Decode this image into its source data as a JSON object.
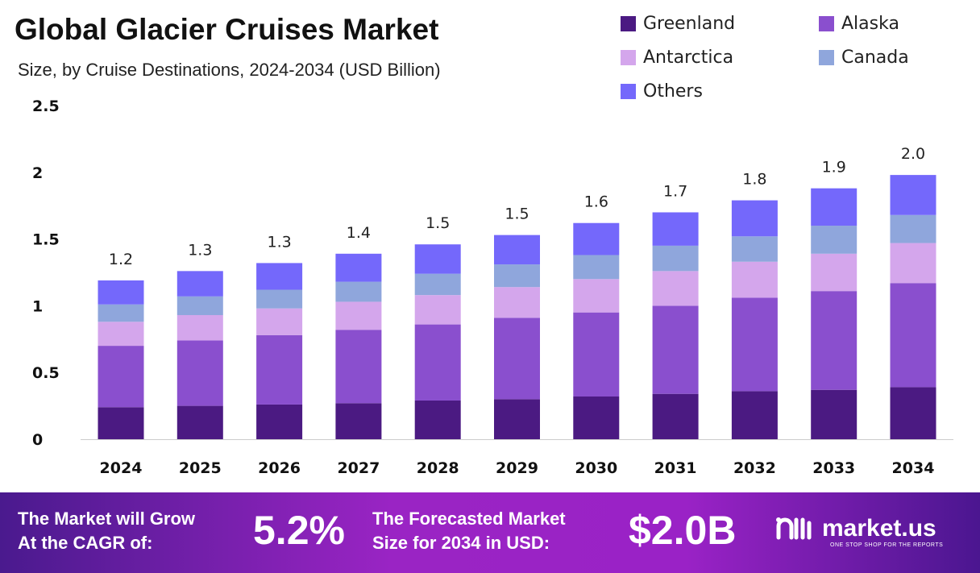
{
  "title": "Global Glacier Cruises Market",
  "subtitle": "Size, by Cruise Destinations, 2024-2034 (USD Billion)",
  "chart_data": {
    "type": "bar",
    "stacked": true,
    "title": "Global Glacier Cruises Market",
    "subtitle": "Size, by Cruise Destinations, 2024-2034 (USD Billion)",
    "categories": [
      "2024",
      "2025",
      "2026",
      "2027",
      "2028",
      "2029",
      "2030",
      "2031",
      "2032",
      "2033",
      "2034"
    ],
    "ylim": [
      0,
      2.5
    ],
    "yticks": [
      "0",
      "0.5",
      "1",
      "1.5",
      "2",
      "2.5"
    ],
    "legend_position": "top-right",
    "grid": false,
    "series": [
      {
        "name": "Greenland",
        "color": "#4b1a82",
        "values": [
          0.24,
          0.25,
          0.26,
          0.27,
          0.29,
          0.3,
          0.32,
          0.34,
          0.36,
          0.37,
          0.39
        ]
      },
      {
        "name": "Alaska",
        "color": "#8a4fce",
        "values": [
          0.46,
          0.49,
          0.52,
          0.55,
          0.57,
          0.61,
          0.63,
          0.66,
          0.7,
          0.74,
          0.78
        ]
      },
      {
        "name": "Antarctica",
        "color": "#d4a6ec",
        "values": [
          0.18,
          0.19,
          0.2,
          0.21,
          0.22,
          0.23,
          0.25,
          0.26,
          0.27,
          0.28,
          0.3
        ]
      },
      {
        "name": "Canada",
        "color": "#8fa6dc",
        "values": [
          0.13,
          0.14,
          0.14,
          0.15,
          0.16,
          0.17,
          0.18,
          0.19,
          0.19,
          0.21,
          0.21
        ]
      },
      {
        "name": "Others",
        "color": "#7468fb",
        "values": [
          0.18,
          0.19,
          0.2,
          0.21,
          0.22,
          0.22,
          0.24,
          0.25,
          0.27,
          0.28,
          0.3
        ]
      }
    ],
    "total_labels": [
      "1.2",
      "1.3",
      "1.3",
      "1.4",
      "1.5",
      "1.5",
      "1.6",
      "1.7",
      "1.8",
      "1.9",
      "2.0"
    ]
  },
  "footer": {
    "cagr_text_1": "The Market will Grow",
    "cagr_text_2": "At the CAGR of:",
    "cagr_value": "5.2%",
    "forecast_text_1": "The Forecasted Market",
    "forecast_text_2": "Size for 2034 in USD:",
    "forecast_value": "$2.0B",
    "brand": "market.us",
    "tagline": "ONE STOP SHOP FOR THE REPORTS"
  }
}
